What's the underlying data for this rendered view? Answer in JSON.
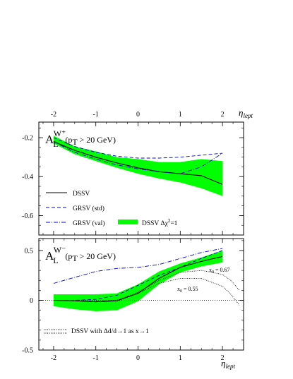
{
  "chart_data": [
    {
      "type": "line",
      "panel": "top",
      "title_main": "A",
      "title_sub": "L",
      "title_sup": "W⁺",
      "title_condition": "(p",
      "title_condition_sub": "T",
      "title_condition_rest": " > 20 GeV)",
      "xlabel": "η",
      "xlabel_sub": "lept",
      "xlim": [
        -2.35,
        2.5
      ],
      "ylim": [
        -0.7,
        -0.12
      ],
      "x_ticks": [
        "-2",
        "-1",
        "0",
        "1",
        "2"
      ],
      "y_ticks": [
        "-0.2",
        "-0.4",
        "-0.6"
      ],
      "y_tick_values": [
        -0.2,
        -0.4,
        -0.6
      ],
      "band": {
        "name": "DSSV Δχ²=1",
        "color": "#00ff00",
        "x": [
          -2.0,
          -1.5,
          -1.0,
          -0.5,
          0.0,
          0.5,
          1.0,
          1.5,
          2.0
        ],
        "upper": [
          -0.19,
          -0.245,
          -0.27,
          -0.3,
          -0.31,
          -0.325,
          -0.325,
          -0.31,
          -0.32
        ],
        "lower": [
          -0.23,
          -0.285,
          -0.32,
          -0.355,
          -0.385,
          -0.41,
          -0.43,
          -0.46,
          -0.5
        ]
      },
      "series": [
        {
          "name": "DSSV",
          "style": "solid",
          "color": "#000000",
          "x": [
            -2.0,
            -1.5,
            -1.0,
            -0.5,
            0.0,
            0.5,
            1.0,
            1.5,
            2.0
          ],
          "y": [
            -0.22,
            -0.265,
            -0.3,
            -0.33,
            -0.355,
            -0.375,
            -0.385,
            -0.395,
            -0.44
          ]
        },
        {
          "name": "GRSV (std)",
          "style": "dashed",
          "color": "#0000cc",
          "x": [
            -2.0,
            -1.5,
            -1.0,
            -0.5,
            0.0,
            0.5,
            1.0,
            1.5,
            2.0
          ],
          "y": [
            -0.2,
            -0.245,
            -0.275,
            -0.295,
            -0.305,
            -0.305,
            -0.3,
            -0.29,
            -0.28
          ]
        },
        {
          "name": "GRSV (val)",
          "style": "dashdot",
          "color": "#0000cc",
          "x": [
            -2.0,
            -1.5,
            -1.0,
            -0.5,
            0.0,
            0.5,
            1.0,
            1.5,
            2.0
          ],
          "y": [
            -0.22,
            -0.275,
            -0.31,
            -0.34,
            -0.36,
            -0.375,
            -0.385,
            -0.35,
            -0.28
          ]
        }
      ]
    },
    {
      "type": "line",
      "panel": "bottom",
      "title_main": "A",
      "title_sub": "L",
      "title_sup": "W⁻",
      "title_condition": "(p",
      "title_condition_sub": "T",
      "title_condition_rest": " > 20 GeV)",
      "xlabel": "η",
      "xlabel_sub": "lept",
      "xlim": [
        -2.35,
        2.5
      ],
      "ylim": [
        -0.5,
        0.62
      ],
      "x_ticks": [
        "-2",
        "-1",
        "0",
        "1",
        "2"
      ],
      "y_ticks": [
        "0.5",
        "0",
        "-0.5"
      ],
      "y_tick_values": [
        0.5,
        0.0,
        -0.5
      ],
      "band": {
        "name": "DSSV Δχ²=1",
        "color": "#00ff00",
        "x": [
          -2.0,
          -1.5,
          -1.0,
          -0.5,
          0.0,
          0.5,
          1.0,
          1.5,
          2.0
        ],
        "upper": [
          0.06,
          0.06,
          0.06,
          0.07,
          0.16,
          0.29,
          0.37,
          0.43,
          0.5
        ],
        "lower": [
          -0.06,
          -0.09,
          -0.11,
          -0.1,
          -0.01,
          0.16,
          0.28,
          0.34,
          0.38
        ]
      },
      "series": [
        {
          "name": "DSSV",
          "style": "solid",
          "color": "#000000",
          "x": [
            -2.0,
            -1.5,
            -1.0,
            -0.5,
            0.0,
            0.5,
            1.0,
            1.5,
            2.0
          ],
          "y": [
            0.0,
            -0.005,
            -0.015,
            -0.005,
            0.07,
            0.22,
            0.33,
            0.39,
            0.44
          ]
        },
        {
          "name": "GRSV (std)",
          "style": "dashed",
          "color": "#0000cc",
          "x": [
            -2.0,
            -1.5,
            -1.0,
            -0.5,
            0.0,
            0.5,
            1.0,
            1.5,
            2.0
          ],
          "y": [
            0.0,
            0.0,
            0.01,
            0.05,
            0.15,
            0.25,
            0.33,
            0.42,
            0.5
          ]
        },
        {
          "name": "GRSV (val)",
          "style": "dashdot",
          "color": "#0000cc",
          "x": [
            -2.0,
            -1.5,
            -1.0,
            -0.5,
            0.0,
            0.5,
            1.0,
            1.5,
            2.0
          ],
          "y": [
            0.17,
            0.23,
            0.29,
            0.32,
            0.33,
            0.36,
            0.42,
            0.48,
            0.52
          ]
        },
        {
          "name": "DSSV with Δd/d→1 as x→1 (x₀ = 0.67)",
          "style": "dotted",
          "color": "#000000",
          "x": [
            -2.0,
            -1.5,
            -1.0,
            -0.5,
            0.0,
            0.5,
            1.0,
            1.5,
            2.0,
            2.2,
            2.4
          ],
          "y": [
            0.0,
            -0.005,
            -0.01,
            0.0,
            0.08,
            0.2,
            0.28,
            0.3,
            0.26,
            0.2,
            0.1
          ]
        },
        {
          "name": "DSSV with Δd/d→1 as x→1 (x₀ = 0.55)",
          "style": "dotted",
          "color": "#000000",
          "x": [
            -2.0,
            -1.5,
            -1.0,
            -0.5,
            0.0,
            0.5,
            1.0,
            1.5,
            2.0,
            2.2,
            2.4
          ],
          "y": [
            0.0,
            -0.005,
            -0.01,
            0.0,
            0.07,
            0.17,
            0.22,
            0.22,
            0.14,
            0.06,
            -0.05
          ]
        }
      ]
    }
  ],
  "legend_top": {
    "dssv": "DSSV",
    "grsv_std": "GRSV (std)",
    "grsv_val": "GRSV (val)",
    "band": "DSSV Δχ",
    "band_sup": "2",
    "band_rest": "=1"
  },
  "legend_bottom": {
    "dotted": "DSSV with Δd/d→1 as x→1"
  },
  "annotations": {
    "x0_067_main": "x",
    "x0_067_sub": "0",
    "x0_067_rest": " = 0.67",
    "x0_055_main": "x",
    "x0_055_sub": "0",
    "x0_055_rest": " = 0.55"
  }
}
